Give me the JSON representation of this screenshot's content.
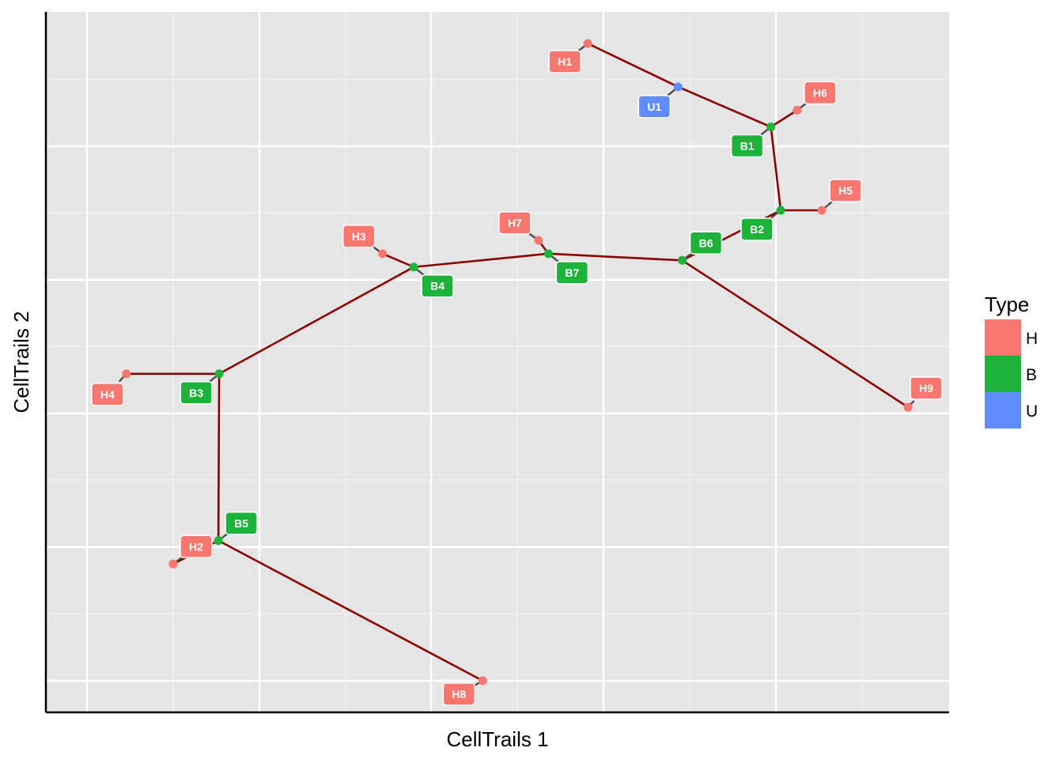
{
  "chart_data": {
    "type": "scatter",
    "subtype": "trajectory-graph",
    "title": "",
    "xlabel": "CellTrails 1",
    "ylabel": "CellTrails 2",
    "xlim": [
      0,
      105
    ],
    "ylim": [
      0,
      105
    ],
    "grid": true,
    "tick_labels": false,
    "legend": {
      "title": "Type",
      "position": "right",
      "entries": [
        {
          "label": "H",
          "color": "#F8766D"
        },
        {
          "label": "B",
          "color": "#1DB33A"
        },
        {
          "label": "U",
          "color": "#5F8DFF"
        }
      ]
    },
    "edge_color": "#8B0000",
    "nodes": [
      {
        "id": "H1",
        "type": "H",
        "x": 61.0,
        "y": 100.0
      },
      {
        "id": "U1",
        "type": "U",
        "x": 72.0,
        "y": 93.5
      },
      {
        "id": "H6",
        "type": "H",
        "x": 86.5,
        "y": 90.0
      },
      {
        "id": "B1",
        "type": "B",
        "x": 83.3,
        "y": 87.5
      },
      {
        "id": "H5",
        "type": "H",
        "x": 89.5,
        "y": 75.0
      },
      {
        "id": "B2",
        "type": "B",
        "x": 84.5,
        "y": 75.0
      },
      {
        "id": "B6",
        "type": "B",
        "x": 72.5,
        "y": 67.5
      },
      {
        "id": "B7",
        "type": "B",
        "x": 56.2,
        "y": 68.5
      },
      {
        "id": "H7",
        "type": "H",
        "x": 55.0,
        "y": 70.5
      },
      {
        "id": "B4",
        "type": "B",
        "x": 39.8,
        "y": 66.5
      },
      {
        "id": "H3",
        "type": "H",
        "x": 36.0,
        "y": 68.5
      },
      {
        "id": "B3",
        "type": "B",
        "x": 16.1,
        "y": 50.5
      },
      {
        "id": "H4",
        "type": "H",
        "x": 4.8,
        "y": 50.5
      },
      {
        "id": "H9",
        "type": "H",
        "x": 100.0,
        "y": 45.5
      },
      {
        "id": "B5",
        "type": "B",
        "x": 16.0,
        "y": 25.5
      },
      {
        "id": "H2",
        "type": "H",
        "x": 10.5,
        "y": 22.0
      },
      {
        "id": "H8",
        "type": "H",
        "x": 48.2,
        "y": 4.5
      }
    ],
    "edges": [
      [
        "H1",
        "U1"
      ],
      [
        "U1",
        "B1"
      ],
      [
        "B1",
        "H6"
      ],
      [
        "B1",
        "B2"
      ],
      [
        "B2",
        "H5"
      ],
      [
        "B2",
        "B6"
      ],
      [
        "B6",
        "B7"
      ],
      [
        "B6",
        "H9"
      ],
      [
        "B7",
        "H7"
      ],
      [
        "B7",
        "B4"
      ],
      [
        "B4",
        "H3"
      ],
      [
        "B4",
        "B3"
      ],
      [
        "B3",
        "H4"
      ],
      [
        "B3",
        "B5"
      ],
      [
        "B5",
        "H2"
      ],
      [
        "B5",
        "H8"
      ]
    ]
  }
}
